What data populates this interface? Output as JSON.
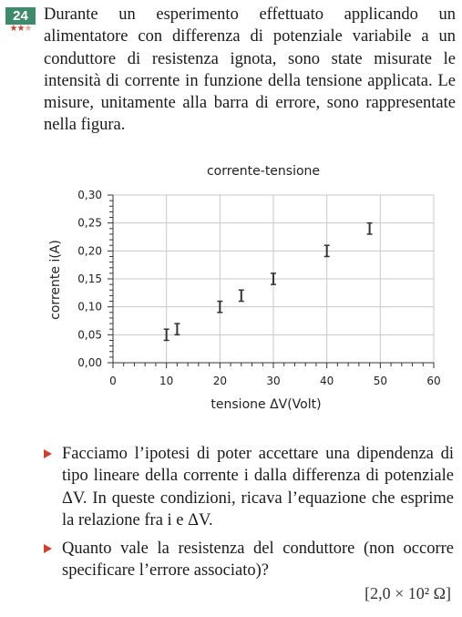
{
  "problem": {
    "number": "24",
    "difficulty": 3,
    "text": "Durante un esperimento effettuato applicando un alimentatore con differenza di potenziale variabile a un conduttore di resistenza ignota, sono state misurate le intensità di corrente in funzione della tensione applicata. Le misure, unitamente alla barra di errore, sono rappresentate nella figura."
  },
  "chart_data": {
    "type": "scatter",
    "title": "corrente-tensione",
    "xlabel": "tensione ΔV(Volt)",
    "ylabel": "corrente i(A)",
    "xlim": [
      0,
      60
    ],
    "ylim": [
      0,
      0.3
    ],
    "x_ticks": [
      "0",
      "10",
      "20",
      "30",
      "40",
      "50",
      "60"
    ],
    "y_ticks": [
      "0,00",
      "0,05",
      "0,10",
      "0,15",
      "0,20",
      "0,25",
      "0,30"
    ],
    "grid": true,
    "error_bar": 0.01,
    "points": [
      {
        "x": 10,
        "y": 0.05
      },
      {
        "x": 12,
        "y": 0.06
      },
      {
        "x": 20,
        "y": 0.1
      },
      {
        "x": 24,
        "y": 0.12
      },
      {
        "x": 30,
        "y": 0.15
      },
      {
        "x": 40,
        "y": 0.2
      },
      {
        "x": 48,
        "y": 0.24
      }
    ],
    "color": "#333333"
  },
  "questions": [
    {
      "text": "Facciamo l’ipotesi di poter accettare una dipendenza di tipo lineare della corrente i dalla differenza di potenziale ΔV. In queste condizioni, ricava l’equazione che esprime la relazione fra i e ΔV."
    },
    {
      "text": "Quanto vale la resistenza del conduttore (non occorre specificare l’errore associato)?"
    }
  ],
  "answer": "[2,0 × 10² Ω]"
}
